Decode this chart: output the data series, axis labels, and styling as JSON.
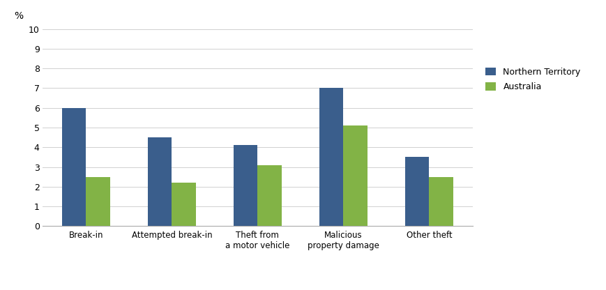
{
  "categories": [
    "Break-in",
    "Attempted break-in",
    "Theft from\na motor vehicle",
    "Malicious\nproperty damage",
    "Other theft"
  ],
  "northern_territory": [
    6.0,
    4.5,
    4.1,
    7.0,
    3.5
  ],
  "australia": [
    2.5,
    2.2,
    3.1,
    5.1,
    2.5
  ],
  "nt_color": "#3A5E8C",
  "au_color": "#82B346",
  "ylabel": "%",
  "ylim": [
    0,
    10
  ],
  "yticks": [
    0,
    1,
    2,
    3,
    4,
    5,
    6,
    7,
    8,
    9,
    10
  ],
  "legend_labels": [
    "Northern Territory",
    "Australia"
  ],
  "bar_width": 0.28,
  "background_color": "#ffffff",
  "grid_color": "#d0d0d0"
}
